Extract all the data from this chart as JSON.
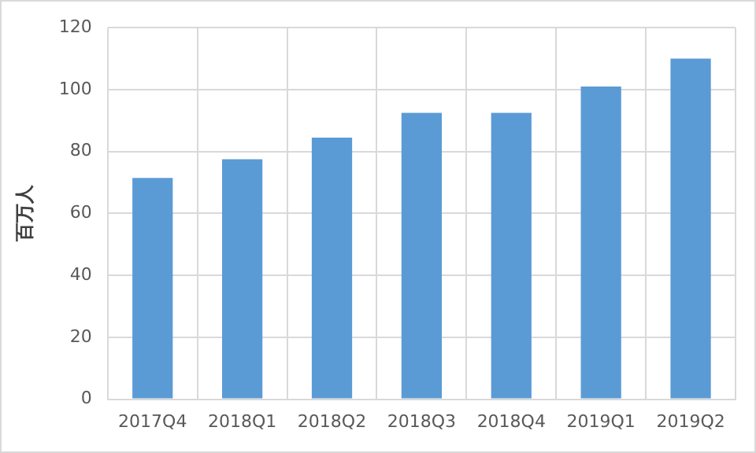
{
  "chart_data": {
    "type": "bar",
    "ylabel": "百万人",
    "categories": [
      "2017Q4",
      "2018Q1",
      "2018Q2",
      "2018Q3",
      "2018Q4",
      "2019Q1",
      "2019Q2"
    ],
    "values": [
      71.5,
      77.5,
      84.5,
      92.5,
      92.5,
      101,
      110
    ],
    "color": "#5b9bd5",
    "ylim": [
      0,
      120
    ],
    "yticks": [
      0,
      20,
      40,
      60,
      80,
      100,
      120
    ],
    "grid": true
  }
}
